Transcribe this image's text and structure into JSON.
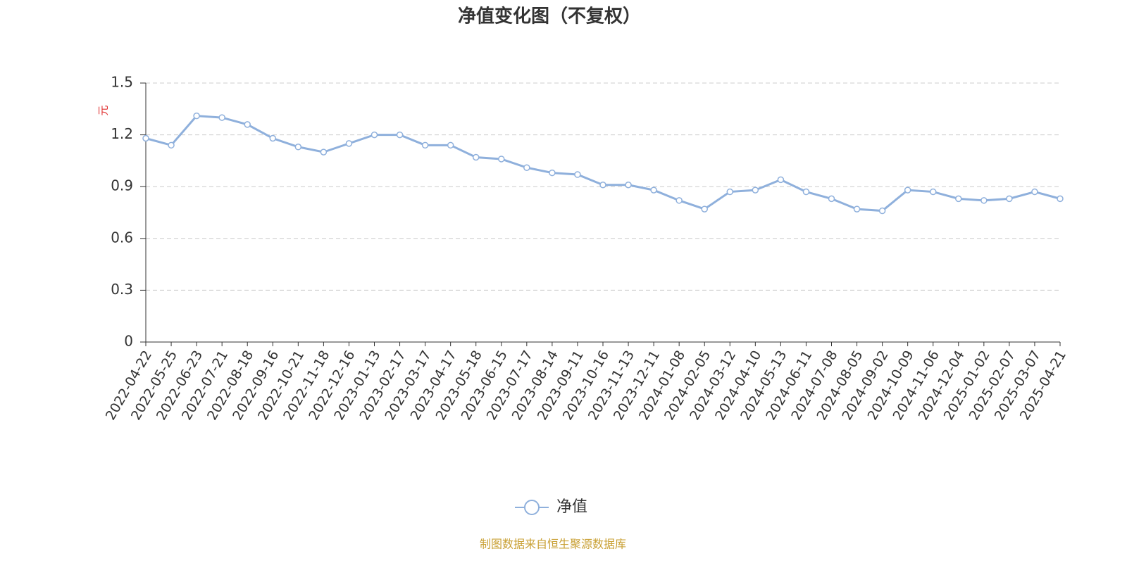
{
  "chart_data": {
    "type": "line",
    "title": "净值变化图（不复权）",
    "y_label": "元",
    "source": "制图数据来自恒生聚源数据库",
    "categories": [
      "2022-04-22",
      "2022-05-25",
      "2022-06-23",
      "2022-07-21",
      "2022-08-18",
      "2022-09-16",
      "2022-10-21",
      "2022-11-18",
      "2022-12-16",
      "2023-01-13",
      "2023-02-17",
      "2023-03-17",
      "2023-04-17",
      "2023-05-18",
      "2023-06-15",
      "2023-07-17",
      "2023-08-14",
      "2023-09-11",
      "2023-10-16",
      "2023-11-13",
      "2023-12-11",
      "2024-01-08",
      "2024-02-05",
      "2024-03-12",
      "2024-04-10",
      "2024-05-13",
      "2024-06-11",
      "2024-07-08",
      "2024-08-05",
      "2024-09-02",
      "2024-10-09",
      "2024-11-06",
      "2024-12-04",
      "2025-01-02",
      "2025-02-07",
      "2025-03-07",
      "2025-04-21"
    ],
    "series": [
      {
        "name": "净值",
        "color": "#8fb0dc",
        "values": [
          1.18,
          1.14,
          1.31,
          1.3,
          1.26,
          1.18,
          1.13,
          1.1,
          1.15,
          1.2,
          1.2,
          1.14,
          1.14,
          1.07,
          1.06,
          1.01,
          0.98,
          0.97,
          0.91,
          0.91,
          0.88,
          0.82,
          0.77,
          0.87,
          0.88,
          0.94,
          0.87,
          0.83,
          0.77,
          0.76,
          0.88,
          0.87,
          0.83,
          0.82,
          0.83,
          0.87,
          0.83
        ]
      }
    ],
    "ylim": [
      0,
      1.5
    ],
    "yticks": [
      0,
      0.3,
      0.6,
      0.9,
      1.2,
      1.5
    ],
    "grid": true
  }
}
